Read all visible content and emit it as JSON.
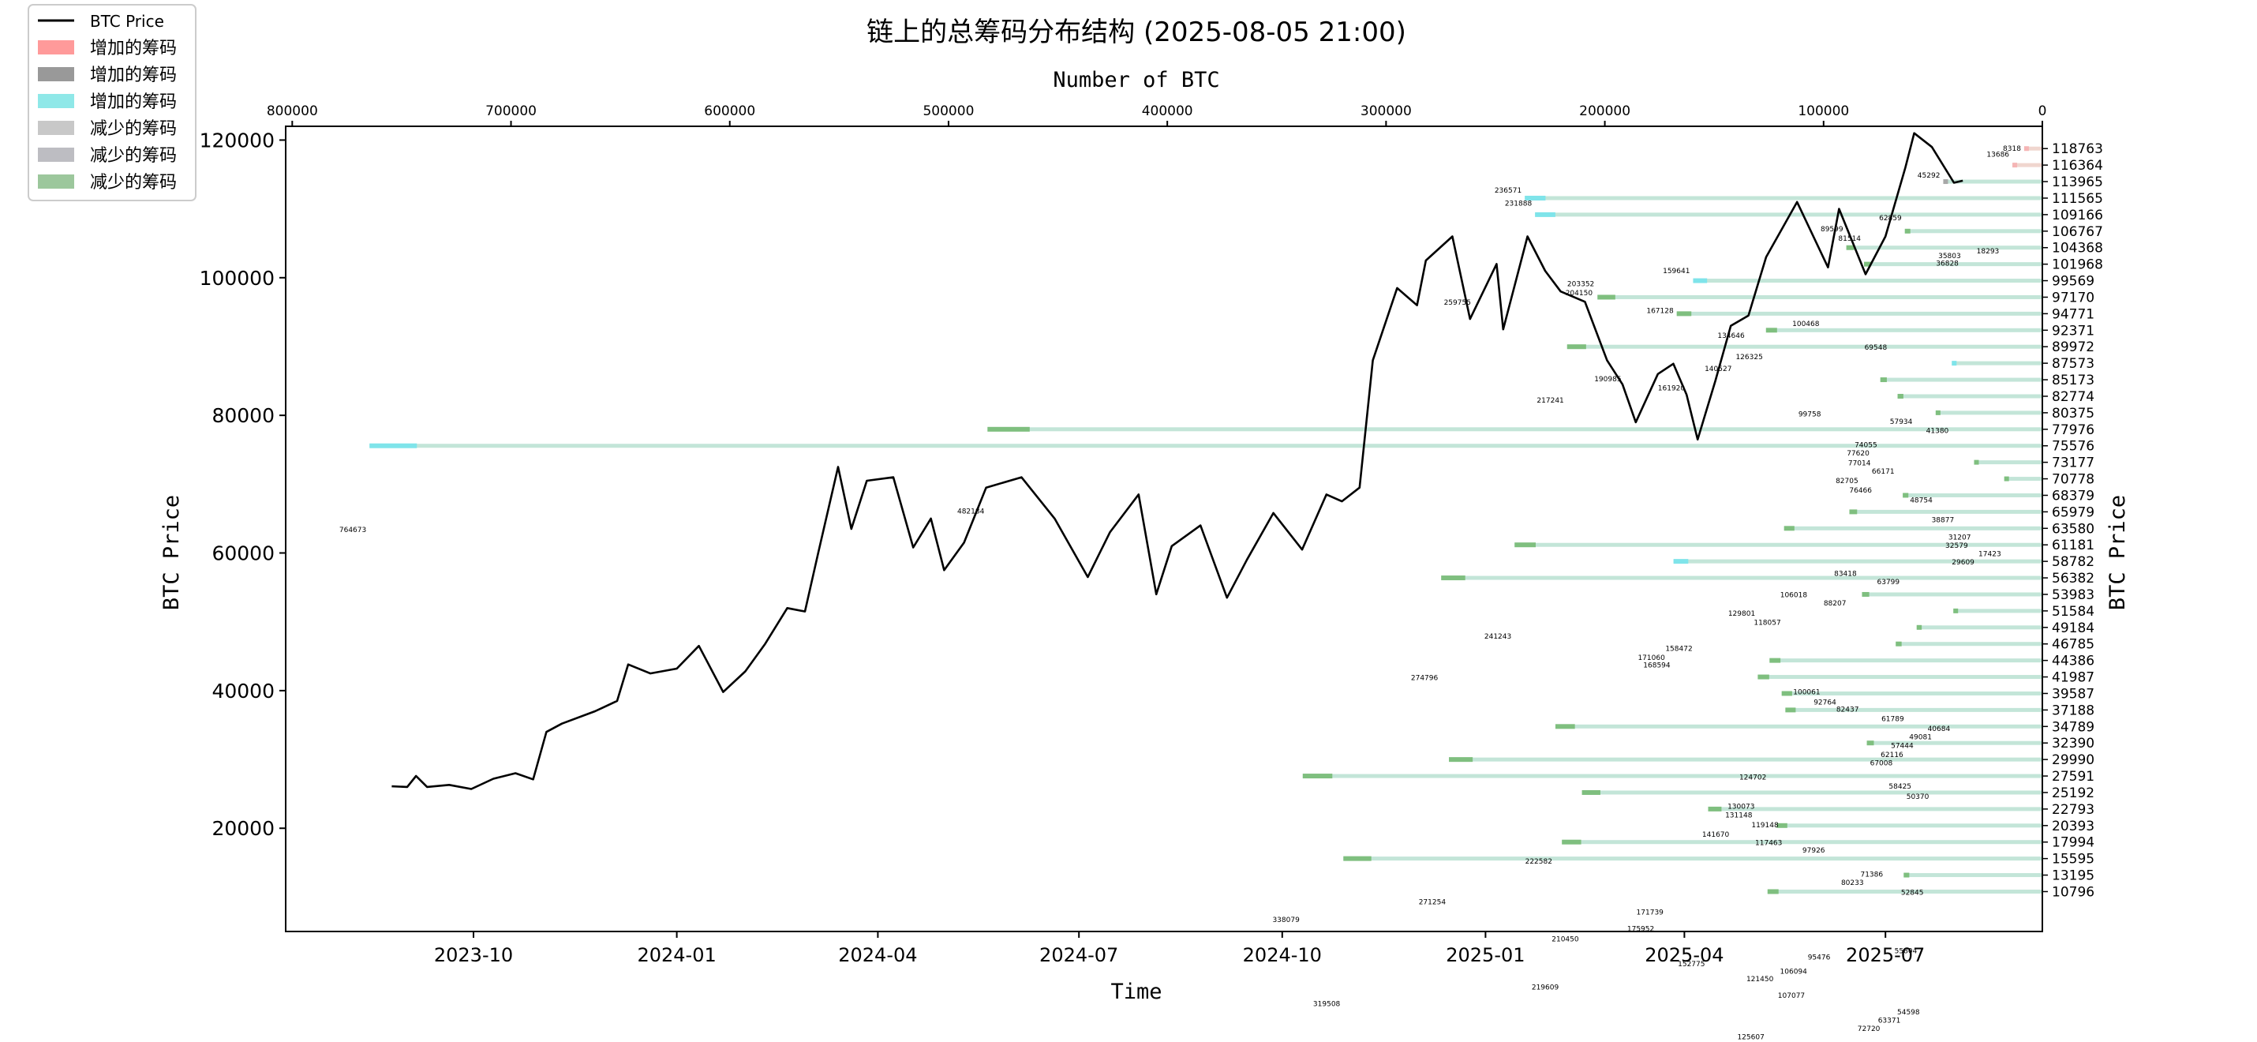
{
  "title": "链上的总筹码分布结构 (2025-08-05 21:00)",
  "chart_data": {
    "type": "line",
    "title": "链上的总筹码分布结构 (2025-08-05 21:00)",
    "xlabel": "Time",
    "ylabel": "BTC Price",
    "ylabel_right": "BTC Price",
    "top_xlabel": "Number of BTC",
    "x_ticks": [
      "2023-10",
      "2024-01",
      "2024-04",
      "2024-07",
      "2024-10",
      "2025-01",
      "2025-04",
      "2025-07"
    ],
    "x_tick_dates": [
      "2023-10-01",
      "2024-01-01",
      "2024-04-01",
      "2024-07-01",
      "2024-10-01",
      "2025-01-01",
      "2025-04-01",
      "2025-07-01"
    ],
    "x_range": [
      "2023-07-08",
      "2025-09-10"
    ],
    "y_ticks": [
      20000,
      40000,
      60000,
      80000,
      100000,
      120000
    ],
    "ylim": [
      5000,
      122000
    ],
    "top_x_ticks": [
      800000,
      700000,
      600000,
      500000,
      400000,
      300000,
      200000,
      100000,
      0
    ],
    "top_xlim": [
      803000,
      0
    ],
    "grid": false,
    "legend_position": "top-left",
    "legend": [
      {
        "label": "BTC Price",
        "kind": "line",
        "color": "#000000"
      },
      {
        "label": "增加的筹码",
        "kind": "patch",
        "color": "#ff9a9a"
      },
      {
        "label": "增加的筹码",
        "kind": "patch",
        "color": "#999999"
      },
      {
        "label": "增加的筹码",
        "kind": "patch",
        "color": "#8fe8e8"
      },
      {
        "label": "减少的筹码",
        "kind": "patch",
        "color": "#c8c8c8"
      },
      {
        "label": "减少的筹码",
        "kind": "patch",
        "color": "#bdbdc2"
      },
      {
        "label": "减少的筹码",
        "kind": "patch",
        "color": "#9cc79c"
      }
    ],
    "price_series": {
      "name": "BTC Price",
      "color": "#000000",
      "points": [
        [
          "2023-08-25",
          26100
        ],
        [
          "2023-09-01",
          26000
        ],
        [
          "2023-09-05",
          27600
        ],
        [
          "2023-09-10",
          26000
        ],
        [
          "2023-09-20",
          26300
        ],
        [
          "2023-09-30",
          25700
        ],
        [
          "2023-10-10",
          27200
        ],
        [
          "2023-10-20",
          28000
        ],
        [
          "2023-10-28",
          27100
        ],
        [
          "2023-11-03",
          34000
        ],
        [
          "2023-11-10",
          35200
        ],
        [
          "2023-11-25",
          37000
        ],
        [
          "2023-12-05",
          38500
        ],
        [
          "2023-12-10",
          43800
        ],
        [
          "2023-12-20",
          42500
        ],
        [
          "2024-01-01",
          43200
        ],
        [
          "2024-01-11",
          46500
        ],
        [
          "2024-01-22",
          39800
        ],
        [
          "2024-02-01",
          42800
        ],
        [
          "2024-02-10",
          46800
        ],
        [
          "2024-02-20",
          52000
        ],
        [
          "2024-02-28",
          51500
        ],
        [
          "2024-03-05",
          60000
        ],
        [
          "2024-03-14",
          72500
        ],
        [
          "2024-03-20",
          63500
        ],
        [
          "2024-03-27",
          70500
        ],
        [
          "2024-04-08",
          71000
        ],
        [
          "2024-04-17",
          60800
        ],
        [
          "2024-04-25",
          65000
        ],
        [
          "2024-05-01",
          57500
        ],
        [
          "2024-05-10",
          61500
        ],
        [
          "2024-05-20",
          69500
        ],
        [
          "2024-06-05",
          71000
        ],
        [
          "2024-06-20",
          65000
        ],
        [
          "2024-07-05",
          56500
        ],
        [
          "2024-07-15",
          63000
        ],
        [
          "2024-07-28",
          68500
        ],
        [
          "2024-08-05",
          54000
        ],
        [
          "2024-08-12",
          61000
        ],
        [
          "2024-08-25",
          64000
        ],
        [
          "2024-09-06",
          53500
        ],
        [
          "2024-09-15",
          59000
        ],
        [
          "2024-09-27",
          65800
        ],
        [
          "2024-10-10",
          60500
        ],
        [
          "2024-10-21",
          68500
        ],
        [
          "2024-10-28",
          67500
        ],
        [
          "2024-11-05",
          69500
        ],
        [
          "2024-11-11",
          88000
        ],
        [
          "2024-11-22",
          98500
        ],
        [
          "2024-12-01",
          96000
        ],
        [
          "2024-12-05",
          102500
        ],
        [
          "2024-12-17",
          106000
        ],
        [
          "2024-12-25",
          94000
        ],
        [
          "2025-01-06",
          102000
        ],
        [
          "2025-01-09",
          92500
        ],
        [
          "2025-01-20",
          106000
        ],
        [
          "2025-01-28",
          101000
        ],
        [
          "2025-02-04",
          98000
        ],
        [
          "2025-02-15",
          96500
        ],
        [
          "2025-02-25",
          88000
        ],
        [
          "2025-03-04",
          84500
        ],
        [
          "2025-03-10",
          79000
        ],
        [
          "2025-03-20",
          86000
        ],
        [
          "2025-03-27",
          87500
        ],
        [
          "2025-04-02",
          83000
        ],
        [
          "2025-04-07",
          76500
        ],
        [
          "2025-04-15",
          85000
        ],
        [
          "2025-04-22",
          93000
        ],
        [
          "2025-04-30",
          94500
        ],
        [
          "2025-05-08",
          103000
        ],
        [
          "2025-05-22",
          111000
        ],
        [
          "2025-06-05",
          101500
        ],
        [
          "2025-06-10",
          110000
        ],
        [
          "2025-06-22",
          100500
        ],
        [
          "2025-07-01",
          106000
        ],
        [
          "2025-07-10",
          116000
        ],
        [
          "2025-07-14",
          121000
        ],
        [
          "2025-07-22",
          119000
        ],
        [
          "2025-08-01",
          113800
        ],
        [
          "2025-08-05",
          114100
        ]
      ]
    },
    "chip_levels": [
      {
        "price": 118763,
        "count": 8318,
        "accent": "pink"
      },
      {
        "price": 116364,
        "count": 13686,
        "accent": "pink"
      },
      {
        "price": 113965,
        "count": 45292,
        "accent": "grey"
      },
      {
        "price": 111565,
        "count": 236571,
        "accent": "cyan"
      },
      {
        "price": 109166,
        "count": 231888,
        "accent": "cyan"
      },
      {
        "price": 106767,
        "count": 62859,
        "accent": "green"
      },
      {
        "price": 104368,
        "count": 89599,
        "accent": "green"
      },
      {
        "price": 101968,
        "count": 81514,
        "accent": "green"
      },
      {
        "price": 99569,
        "count": 159641,
        "accent": "cyan"
      },
      {
        "price": 97170,
        "count": 203352,
        "accent": "green"
      },
      {
        "price": 94771,
        "count": 167128,
        "accent": "green"
      },
      {
        "price": 92371,
        "count": 126325,
        "accent": "green"
      },
      {
        "price": 89972,
        "count": 217241,
        "accent": "green"
      },
      {
        "price": 87573,
        "count": 41380,
        "accent": "cyan"
      },
      {
        "price": 85173,
        "count": 74055,
        "accent": "green"
      },
      {
        "price": 82774,
        "count": 66171,
        "accent": "green"
      },
      {
        "price": 80375,
        "count": 48754,
        "accent": "green"
      },
      {
        "price": 77976,
        "count": 482184,
        "accent": "green"
      },
      {
        "price": 75576,
        "count": 764673,
        "accent": "cyan"
      },
      {
        "price": 73177,
        "count": 31207,
        "accent": "green"
      },
      {
        "price": 70778,
        "count": 17423,
        "accent": "green"
      },
      {
        "price": 68379,
        "count": 63799,
        "accent": "green"
      },
      {
        "price": 65979,
        "count": 88207,
        "accent": "green"
      },
      {
        "price": 63580,
        "count": 118057,
        "accent": "green"
      },
      {
        "price": 61181,
        "count": 241243,
        "accent": "green"
      },
      {
        "price": 58782,
        "count": 168594,
        "accent": "cyan"
      },
      {
        "price": 56382,
        "count": 274796,
        "accent": "green"
      },
      {
        "price": 53983,
        "count": 82437,
        "accent": "green"
      },
      {
        "price": 51584,
        "count": 40684,
        "accent": "green"
      },
      {
        "price": 49184,
        "count": 57444,
        "accent": "green"
      },
      {
        "price": 46785,
        "count": 67008,
        "accent": "green"
      },
      {
        "price": 44386,
        "count": 124702,
        "accent": "green"
      },
      {
        "price": 41987,
        "count": 130073,
        "accent": "green"
      },
      {
        "price": 39587,
        "count": 119148,
        "accent": "green"
      },
      {
        "price": 37188,
        "count": 117463,
        "accent": "green"
      },
      {
        "price": 34789,
        "count": 222582,
        "accent": "green"
      },
      {
        "price": 32390,
        "count": 80233,
        "accent": "green"
      },
      {
        "price": 29990,
        "count": 271254,
        "accent": "green"
      },
      {
        "price": 27591,
        "count": 338079,
        "accent": "green"
      },
      {
        "price": 25192,
        "count": 210450,
        "accent": "green"
      },
      {
        "price": 22793,
        "count": 152775,
        "accent": "green"
      },
      {
        "price": 20393,
        "count": 121450,
        "accent": "green"
      },
      {
        "price": 17994,
        "count": 219609,
        "accent": "green"
      },
      {
        "price": 15595,
        "count": 319508,
        "accent": "green"
      },
      {
        "price": 13195,
        "count": 63371,
        "accent": "green"
      },
      {
        "price": 10796,
        "count": 125607,
        "accent": "green"
      }
    ],
    "chip_annotations": [
      {
        "price": 118763,
        "text": "8318"
      },
      {
        "price": 117900,
        "text": "13686"
      },
      {
        "price": 114900,
        "text": "45292"
      },
      {
        "price": 112700,
        "text": "236571"
      },
      {
        "price": 110800,
        "text": "231888"
      },
      {
        "price": 108700,
        "text": "62859"
      },
      {
        "price": 107100,
        "text": "89599"
      },
      {
        "price": 105700,
        "text": "81514"
      },
      {
        "price": 103900,
        "text": "18293"
      },
      {
        "price": 103200,
        "text": "35803"
      },
      {
        "price": 102100,
        "text": "36828"
      },
      {
        "price": 101000,
        "text": "159641"
      },
      {
        "price": 99100,
        "text": "203352"
      },
      {
        "price": 97800,
        "text": "204150"
      },
      {
        "price": 96400,
        "text": "259755"
      },
      {
        "price": 95200,
        "text": "167128"
      },
      {
        "price": 93300,
        "text": "100468"
      },
      {
        "price": 91600,
        "text": "134646"
      },
      {
        "price": 89900,
        "text": "69548"
      },
      {
        "price": 88500,
        "text": "126325"
      },
      {
        "price": 86800,
        "text": "140527"
      },
      {
        "price": 85300,
        "text": "190985"
      },
      {
        "price": 84000,
        "text": "161920"
      },
      {
        "price": 82200,
        "text": "217241"
      },
      {
        "price": 80200,
        "text": "99758"
      },
      {
        "price": 79100,
        "text": "57934"
      },
      {
        "price": 77800,
        "text": "41380"
      },
      {
        "price": 75700,
        "text": "74055"
      },
      {
        "price": 74500,
        "text": "77620"
      },
      {
        "price": 73100,
        "text": "77014"
      },
      {
        "price": 71900,
        "text": "66171"
      },
      {
        "price": 70500,
        "text": "82705"
      },
      {
        "price": 69100,
        "text": "76466"
      },
      {
        "price": 67700,
        "text": "48754"
      },
      {
        "price": 66100,
        "text": "482184"
      },
      {
        "price": 64800,
        "text": "38877"
      },
      {
        "price": 63400,
        "text": "764673"
      },
      {
        "price": 62300,
        "text": "31207"
      },
      {
        "price": 61100,
        "text": "32579"
      },
      {
        "price": 59900,
        "text": "17423"
      },
      {
        "price": 58700,
        "text": "29609"
      },
      {
        "price": 57000,
        "text": "83418"
      },
      {
        "price": 55800,
        "text": "63799"
      },
      {
        "price": 53900,
        "text": "106018"
      },
      {
        "price": 52700,
        "text": "88207"
      },
      {
        "price": 51200,
        "text": "129801"
      },
      {
        "price": 49900,
        "text": "118057"
      },
      {
        "price": 47900,
        "text": "241243"
      },
      {
        "price": 46100,
        "text": "158472"
      },
      {
        "price": 44800,
        "text": "171060"
      },
      {
        "price": 43700,
        "text": "168594"
      },
      {
        "price": 41900,
        "text": "274796"
      },
      {
        "price": 39800,
        "text": "100061"
      },
      {
        "price": 38300,
        "text": "92764"
      },
      {
        "price": 37300,
        "text": "82437"
      },
      {
        "price": 35900,
        "text": "61789"
      },
      {
        "price": 34500,
        "text": "40684"
      },
      {
        "price": 33300,
        "text": "49081"
      },
      {
        "price": 32000,
        "text": "57444"
      },
      {
        "price": 30700,
        "text": "62116"
      },
      {
        "price": 29500,
        "text": "67008"
      },
      {
        "price": 27400,
        "text": "124702"
      },
      {
        "price": 26100,
        "text": "58425"
      },
      {
        "price": 24600,
        "text": "50370"
      },
      {
        "price": 23200,
        "text": "130073"
      },
      {
        "price": 21900,
        "text": "131148"
      },
      {
        "price": 20500,
        "text": "119148"
      },
      {
        "price": 19100,
        "text": "141670"
      },
      {
        "price": 17900,
        "text": "117463"
      },
      {
        "price": 16800,
        "text": "97926"
      },
      {
        "price": 15200,
        "text": "222582"
      },
      {
        "price": 13300,
        "text": "71386"
      },
      {
        "price": 12100,
        "text": "80233"
      },
      {
        "price": 10700,
        "text": "52845"
      },
      {
        "price": 9300,
        "text": "271254"
      },
      {
        "price": 7800,
        "text": "171739"
      },
      {
        "price": 6700,
        "text": "338079"
      },
      {
        "price": 5400,
        "text": "175952"
      },
      {
        "price": 3900,
        "text": "210450"
      },
      {
        "price": 2200,
        "text": "55804"
      },
      {
        "price": 1300,
        "text": "95476"
      },
      {
        "price": 300,
        "text": "152775"
      },
      {
        "price": -800,
        "text": "106094"
      },
      {
        "price": -1900,
        "text": "121450"
      },
      {
        "price": -3100,
        "text": "219609"
      },
      {
        "price": -4300,
        "text": "107077"
      },
      {
        "price": -5500,
        "text": "319508"
      },
      {
        "price": -6700,
        "text": "54598"
      },
      {
        "price": -7900,
        "text": "63371"
      },
      {
        "price": -9100,
        "text": "72720"
      },
      {
        "price": -10300,
        "text": "125607"
      }
    ]
  }
}
